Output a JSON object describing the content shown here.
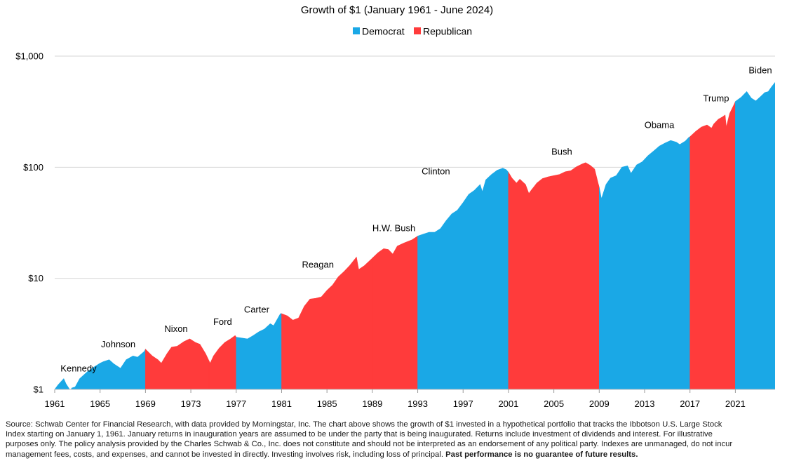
{
  "chart_data": {
    "type": "area",
    "title": "Growth of $1 (January 1961 - June 2024)",
    "yscale": "log",
    "ylim": [
      1,
      1000
    ],
    "xlim": [
      1961,
      2024.5
    ],
    "y_ticks": [
      1,
      10,
      100,
      1000
    ],
    "y_tick_labels": [
      "$1",
      "$10",
      "$100",
      "$1,000"
    ],
    "x_ticks": [
      1961,
      1965,
      1969,
      1973,
      1977,
      1981,
      1985,
      1989,
      1993,
      1997,
      2001,
      2005,
      2009,
      2013,
      2017,
      2021
    ],
    "x_tick_labels": [
      "1961",
      "1965",
      "1969",
      "1973",
      "1977",
      "1981",
      "1985",
      "1989",
      "1993",
      "1997",
      "2001",
      "2005",
      "2009",
      "2013",
      "2017",
      "2021"
    ],
    "legend": [
      {
        "name": "Democrat",
        "color": "#1aa8e6"
      },
      {
        "name": "Republican",
        "color": "#ff3b3b"
      }
    ],
    "presidencies": [
      {
        "name": "Kennedy",
        "party": "Democrat",
        "start": 1961,
        "end": 1963.9
      },
      {
        "name": "Johnson",
        "party": "Democrat",
        "start": 1963.9,
        "end": 1969
      },
      {
        "name": "Nixon",
        "party": "Republican",
        "start": 1969,
        "end": 1974.6
      },
      {
        "name": "Ford",
        "party": "Republican",
        "start": 1974.6,
        "end": 1977
      },
      {
        "name": "Carter",
        "party": "Democrat",
        "start": 1977,
        "end": 1981
      },
      {
        "name": "Reagan",
        "party": "Republican",
        "start": 1981,
        "end": 1989
      },
      {
        "name": "H.W. Bush",
        "party": "Republican",
        "start": 1989,
        "end": 1993
      },
      {
        "name": "Clinton",
        "party": "Democrat",
        "start": 1993,
        "end": 2001
      },
      {
        "name": "Bush",
        "party": "Republican",
        "start": 2001,
        "end": 2009
      },
      {
        "name": "Obama",
        "party": "Democrat",
        "start": 2009,
        "end": 2017
      },
      {
        "name": "Trump",
        "party": "Republican",
        "start": 2017,
        "end": 2021
      },
      {
        "name": "Biden",
        "party": "Democrat",
        "start": 2021,
        "end": 2024.5
      }
    ],
    "series": [
      {
        "name": "Growth of $1",
        "x": [
          1961.0,
          1961.3,
          1961.8,
          1962.0,
          1962.4,
          1962.5,
          1962.8,
          1963.2,
          1963.9,
          1964.5,
          1965.0,
          1965.3,
          1965.8,
          1966.2,
          1966.8,
          1967.3,
          1967.9,
          1968.3,
          1968.9,
          1969.0,
          1969.6,
          1970.1,
          1970.4,
          1970.9,
          1971.3,
          1971.8,
          1972.4,
          1972.9,
          1973.4,
          1973.8,
          1974.3,
          1974.7,
          1975.0,
          1975.5,
          1976.0,
          1976.5,
          1976.9,
          1977.0,
          1977.5,
          1978.0,
          1978.5,
          1979.0,
          1979.5,
          1980.0,
          1980.3,
          1980.9,
          1981.0,
          1981.5,
          1982.0,
          1982.5,
          1983.0,
          1983.5,
          1984.0,
          1984.5,
          1985.0,
          1985.5,
          1986.0,
          1986.5,
          1987.0,
          1987.6,
          1987.8,
          1988.3,
          1989.0,
          1989.5,
          1990.0,
          1990.4,
          1990.8,
          1991.2,
          1991.8,
          1992.5,
          1993.0,
          1993.5,
          1994.0,
          1994.5,
          1995.0,
          1995.5,
          1996.0,
          1996.5,
          1997.0,
          1997.5,
          1998.0,
          1998.5,
          1998.7,
          1999.0,
          1999.5,
          2000.0,
          2000.5,
          2000.8,
          2001.0,
          2001.3,
          2001.7,
          2002.0,
          2002.5,
          2002.8,
          2003.0,
          2003.5,
          2004.0,
          2004.5,
          2005.0,
          2005.5,
          2006.0,
          2006.5,
          2007.0,
          2007.5,
          2007.8,
          2008.2,
          2008.6,
          2008.9,
          2009.0,
          2009.2,
          2009.6,
          2010.0,
          2010.5,
          2011.0,
          2011.5,
          2011.8,
          2012.3,
          2012.8,
          2013.3,
          2013.8,
          2014.3,
          2014.8,
          2015.3,
          2015.8,
          2016.1,
          2016.6,
          2016.9,
          2017.0,
          2017.5,
          2018.0,
          2018.5,
          2018.9,
          2019.1,
          2019.5,
          2019.9,
          2020.1,
          2020.2,
          2020.5,
          2020.9,
          2021.0,
          2021.5,
          2022.0,
          2022.4,
          2022.8,
          2023.2,
          2023.6,
          2023.9,
          2024.2,
          2024.5
        ],
        "y": [
          1.0,
          1.1,
          1.25,
          1.12,
          0.97,
          1.03,
          1.05,
          1.25,
          1.45,
          1.6,
          1.72,
          1.78,
          1.85,
          1.7,
          1.55,
          1.85,
          2.0,
          1.95,
          2.2,
          2.3,
          2.0,
          1.85,
          1.72,
          2.1,
          2.4,
          2.45,
          2.7,
          2.85,
          2.65,
          2.55,
          2.1,
          1.72,
          2.0,
          2.35,
          2.65,
          2.85,
          3.05,
          2.95,
          2.9,
          2.85,
          3.05,
          3.3,
          3.5,
          3.9,
          3.75,
          4.8,
          4.8,
          4.6,
          4.2,
          4.4,
          5.6,
          6.5,
          6.6,
          6.8,
          7.8,
          8.7,
          10.3,
          11.5,
          13.0,
          15.5,
          12.0,
          13.0,
          15.2,
          17.0,
          18.5,
          18.2,
          16.5,
          19.5,
          20.8,
          22.2,
          24.0,
          25.0,
          26.0,
          26.0,
          28.0,
          33.0,
          38.0,
          41.0,
          48.0,
          57.0,
          62.0,
          70.0,
          60.0,
          77.0,
          86.0,
          94.0,
          98.0,
          95.0,
          90.0,
          80.0,
          72.0,
          78.0,
          70.0,
          58.0,
          62.0,
          72.0,
          79.0,
          82.0,
          84.0,
          86.0,
          91.0,
          93.0,
          101.0,
          107.0,
          110.0,
          104.0,
          96.0,
          72.0,
          66.0,
          52.0,
          70.0,
          80.0,
          84.0,
          100.0,
          103.0,
          88.0,
          105.0,
          112.0,
          127.0,
          140.0,
          155.0,
          165.0,
          174.0,
          168.0,
          160.0,
          172.0,
          186.0,
          188.0,
          210.0,
          230.0,
          240.0,
          225.0,
          245.0,
          270.0,
          285.0,
          295.0,
          230.0,
          305.0,
          370.0,
          390.0,
          425.0,
          480.0,
          420.0,
          395.0,
          430.0,
          470.0,
          480.0,
          530.0,
          580.0
        ]
      }
    ]
  },
  "footnote": {
    "text": "Source: Schwab Center for Financial Research, with data provided by Morningstar, Inc. The chart above shows the growth of $1 invested in a hypothetical portfolio that tracks the Ibbotson U.S. Large Stock Index starting on January 1, 1961. January returns in inauguration years are assumed to be under the party that is being inaugurated. Returns include investment of dividends and interest. For illustrative purposes only. The policy analysis provided by the Charles Schwab & Co., Inc. does not constitute and should not be interpreted as an endorsement of any political party. Indexes are unmanaged, do not incur management fees, costs, and expenses, and cannot be invested in directly. Investing involves risk, including loss of principal.",
    "emphasis": "Past performance is no guarantee of future results."
  }
}
